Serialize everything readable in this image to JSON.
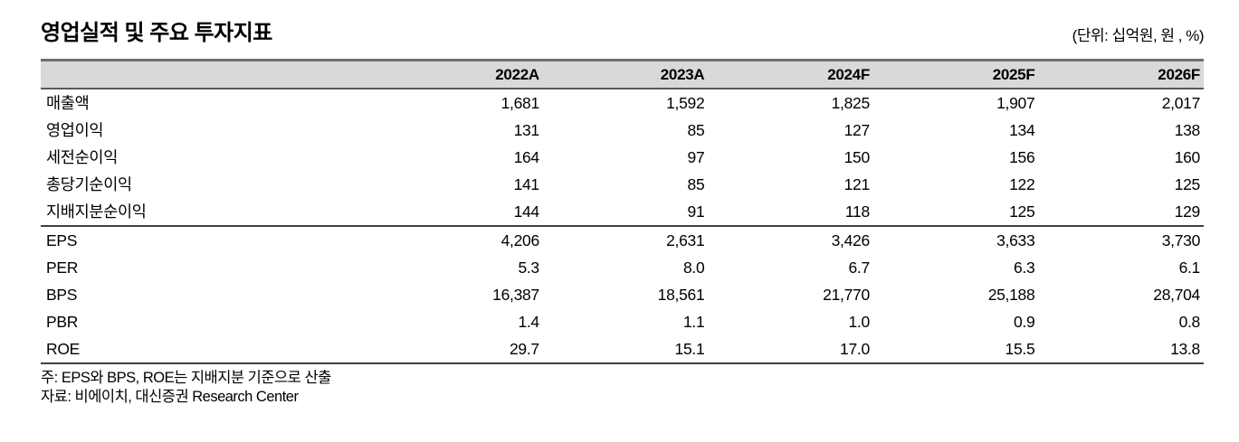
{
  "title": "영업실적 및 주요 투자지표",
  "unit_note": "(단위: 십억원, 원 , %)",
  "table": {
    "columns": [
      "",
      "2022A",
      "2023A",
      "2024F",
      "2025F",
      "2026F"
    ],
    "sections": [
      {
        "name": "earnings",
        "rows": [
          {
            "label": "매출액",
            "values": [
              "1,681",
              "1,592",
              "1,825",
              "1,907",
              "2,017"
            ]
          },
          {
            "label": "영업이익",
            "values": [
              "131",
              "85",
              "127",
              "134",
              "138"
            ]
          },
          {
            "label": "세전순이익",
            "values": [
              "164",
              "97",
              "150",
              "156",
              "160"
            ]
          },
          {
            "label": "총당기순이익",
            "values": [
              "141",
              "85",
              "121",
              "122",
              "125"
            ]
          },
          {
            "label": "지배지분순이익",
            "values": [
              "144",
              "91",
              "118",
              "125",
              "129"
            ]
          }
        ]
      },
      {
        "name": "metrics",
        "rows": [
          {
            "label": "EPS",
            "values": [
              "4,206",
              "2,631",
              "3,426",
              "3,633",
              "3,730"
            ]
          },
          {
            "label": "PER",
            "values": [
              "5.3",
              "8.0",
              "6.7",
              "6.3",
              "6.1"
            ]
          },
          {
            "label": "BPS",
            "values": [
              "16,387",
              "18,561",
              "21,770",
              "25,188",
              "28,704"
            ]
          },
          {
            "label": "PBR",
            "values": [
              "1.4",
              "1.1",
              "1.0",
              "0.9",
              "0.8"
            ]
          },
          {
            "label": "ROE",
            "values": [
              "29.7",
              "15.1",
              "17.0",
              "15.5",
              "13.8"
            ]
          }
        ]
      }
    ]
  },
  "notes": [
    "주: EPS와 BPS, ROE는 지배지분 기준으로 산출",
    "자료: 비에이치, 대신증권 Research Center"
  ],
  "colors": {
    "header_bg": "#d9d9d9",
    "rule_gray": "#6e6e6e",
    "rule_dark": "#3f3f3f",
    "text": "#000000"
  }
}
